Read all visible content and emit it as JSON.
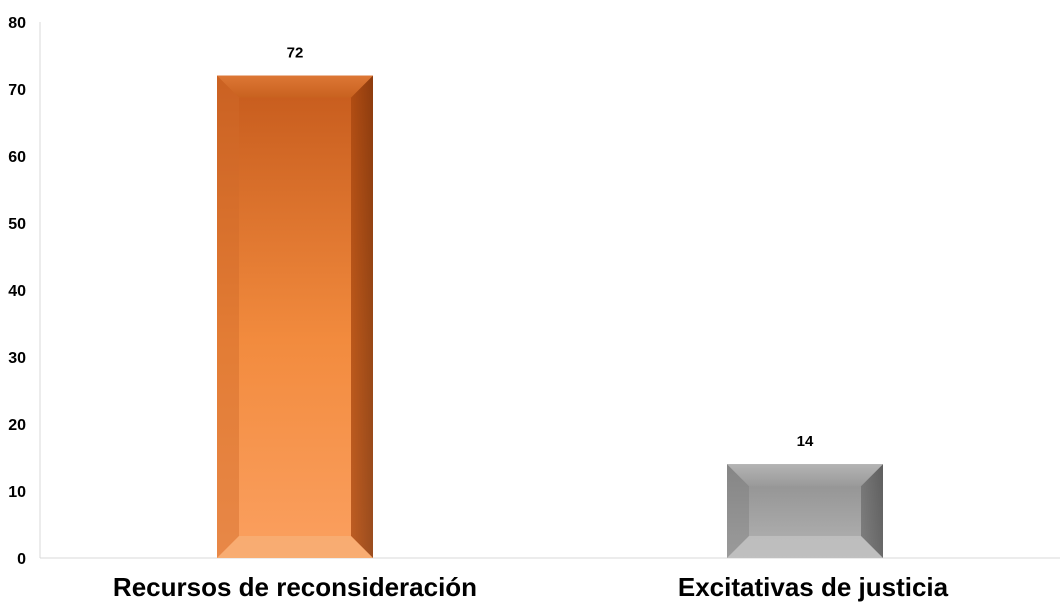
{
  "chart_data": {
    "type": "bar",
    "title": "",
    "xlabel": "",
    "ylabel": "",
    "categories": [
      "Recursos de reconsideración",
      "Excitativas de justicia"
    ],
    "values": [
      72,
      14
    ],
    "data_labels": [
      "72",
      "14"
    ],
    "ylim": [
      0,
      80
    ],
    "yticks": [
      0,
      10,
      20,
      30,
      40,
      50,
      60,
      70,
      80
    ],
    "grid": false,
    "legend": "none",
    "bar_colors": [
      "#f0893a",
      "#a8a8a8"
    ]
  }
}
